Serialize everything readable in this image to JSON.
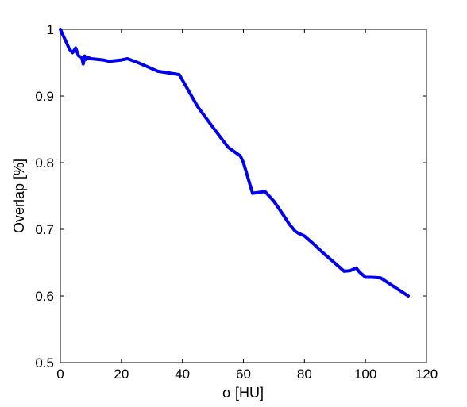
{
  "chart_data": {
    "type": "line",
    "xlabel": "σ [HU]",
    "ylabel": "Overlap [%]",
    "xlim": [
      0,
      120
    ],
    "ylim": [
      0.5,
      1
    ],
    "xticks": [
      0,
      20,
      40,
      60,
      80,
      100,
      120
    ],
    "yticks": [
      0.5,
      0.6,
      0.7,
      0.8,
      0.9,
      1
    ],
    "xtick_labels": [
      "0",
      "20",
      "40",
      "60",
      "80",
      "100",
      "120"
    ],
    "ytick_labels": [
      "0.5",
      "0.6",
      "0.7",
      "0.8",
      "0.9",
      "1"
    ],
    "grid": false,
    "legend": "none",
    "series": [
      {
        "color": "#0000ee",
        "x": [
          0,
          1,
          2,
          3,
          4,
          5,
          6,
          7,
          7.5,
          8,
          8.5,
          9,
          10,
          12,
          14,
          16,
          18,
          20,
          22,
          25,
          28,
          32,
          35,
          39,
          42,
          45,
          50,
          55,
          59,
          60,
          63,
          66,
          67,
          70,
          73,
          75,
          77,
          78,
          80,
          83,
          86,
          90,
          93,
          95,
          97,
          98,
          100,
          102,
          105,
          108,
          111,
          114
        ],
        "y": [
          1.0,
          0.99,
          0.98,
          0.97,
          0.965,
          0.972,
          0.96,
          0.958,
          0.948,
          0.96,
          0.955,
          0.958,
          0.956,
          0.955,
          0.954,
          0.952,
          0.953,
          0.954,
          0.956,
          0.951,
          0.945,
          0.937,
          0.935,
          0.932,
          0.908,
          0.884,
          0.853,
          0.823,
          0.81,
          0.8,
          0.754,
          0.756,
          0.757,
          0.742,
          0.722,
          0.708,
          0.697,
          0.694,
          0.69,
          0.678,
          0.665,
          0.649,
          0.637,
          0.638,
          0.642,
          0.636,
          0.628,
          0.628,
          0.627,
          0.618,
          0.609,
          0.6
        ]
      }
    ]
  }
}
